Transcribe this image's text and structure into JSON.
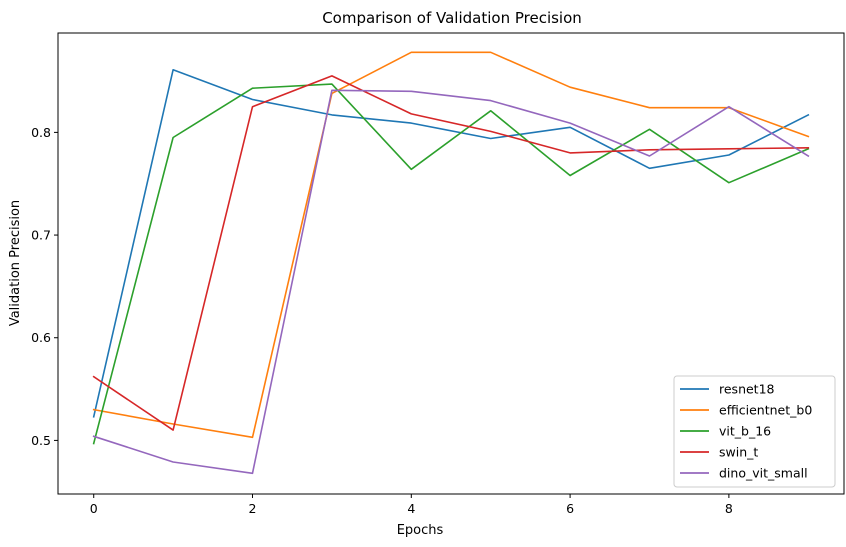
{
  "chart_data": {
    "type": "line",
    "title": "Comparison of Validation Precision",
    "xlabel": "Epochs",
    "ylabel": "Validation Precision",
    "x": [
      0,
      1,
      2,
      3,
      4,
      5,
      6,
      7,
      8,
      9
    ],
    "xlim": [
      -0.45,
      9.45
    ],
    "ylim": [
      0.4478,
      0.8968
    ],
    "xticks": [
      0,
      2,
      4,
      6,
      8
    ],
    "yticks": [
      0.5,
      0.6,
      0.7,
      0.8
    ],
    "xtick_labels": [
      "0",
      "2",
      "4",
      "6",
      "8"
    ],
    "ytick_labels": [
      "0.5",
      "0.6",
      "0.7",
      "0.8"
    ],
    "grid": false,
    "legend_position": "lower-right",
    "series": [
      {
        "name": "resnet18",
        "color": "#1f77b4",
        "values": [
          0.523,
          0.861,
          0.832,
          0.817,
          0.809,
          0.794,
          0.805,
          0.765,
          0.778,
          0.817
        ]
      },
      {
        "name": "efficientnet_b0",
        "color": "#ff7f0e",
        "values": [
          0.53,
          0.516,
          0.503,
          0.838,
          0.878,
          0.878,
          0.844,
          0.824,
          0.824,
          0.796
        ]
      },
      {
        "name": "vit_b_16",
        "color": "#2ca02c",
        "values": [
          0.497,
          0.795,
          0.843,
          0.847,
          0.764,
          0.821,
          0.758,
          0.803,
          0.751,
          0.784
        ]
      },
      {
        "name": "swin_t",
        "color": "#d62728",
        "values": [
          0.562,
          0.51,
          0.825,
          0.855,
          0.818,
          0.801,
          0.78,
          0.783,
          0.784,
          0.785
        ]
      },
      {
        "name": "dino_vit_small",
        "color": "#9467bd",
        "values": [
          0.504,
          0.479,
          0.468,
          0.841,
          0.84,
          0.831,
          0.809,
          0.777,
          0.825,
          0.777
        ]
      }
    ]
  }
}
